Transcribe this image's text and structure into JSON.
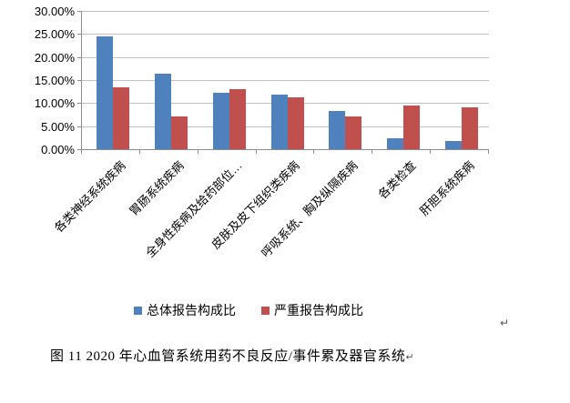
{
  "chart_data": {
    "type": "bar",
    "categories": [
      "各类神经系统疾病",
      "胃肠系统疾病",
      "全身性疾病及给药部位…",
      "皮肤及皮下组织类疾病",
      "呼吸系统、胸及纵隔疾病",
      "各类检查",
      "肝胆系统疾病"
    ],
    "series": [
      {
        "name": "总体报告构成比",
        "color": "#4F81BD",
        "values": [
          24.5,
          16.4,
          12.2,
          11.9,
          8.3,
          2.4,
          1.7
        ]
      },
      {
        "name": "严重报告构成比",
        "color": "#C0504D",
        "values": [
          13.5,
          7.2,
          13.1,
          11.2,
          7.1,
          9.5,
          9.0
        ]
      }
    ],
    "title": "",
    "xlabel": "",
    "ylabel": "",
    "ylim": [
      0,
      30
    ],
    "ytick_step": 5,
    "yticks": [
      "30.00%",
      "25.00%",
      "20.00%",
      "15.00%",
      "10.00%",
      "5.00%",
      "0.00%"
    ],
    "grid": true,
    "legend_position": "bottom",
    "axis_color": "#8c8c8c",
    "gridline_color": "#c3c3c3"
  },
  "caption": {
    "text": "图 11  2020 年心血管系统用药不良反应/事件累及器官系统",
    "return_mark": "↵"
  },
  "page": {
    "floating_return_mark": "↵"
  }
}
